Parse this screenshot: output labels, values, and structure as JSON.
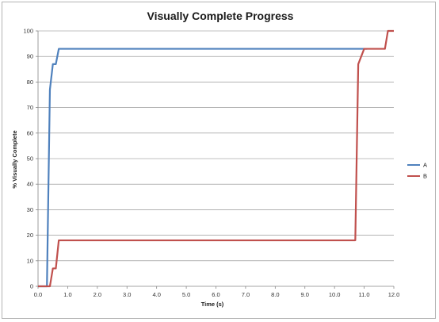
{
  "chart_data": {
    "type": "line",
    "title": "Visually Complete Progress",
    "xlabel": "Time (s)",
    "ylabel": "% Visually Complete",
    "xlim": [
      0,
      12
    ],
    "ylim": [
      0,
      100
    ],
    "x_ticks": [
      0,
      1,
      2,
      3,
      4,
      5,
      6,
      7,
      8,
      9,
      10,
      11,
      12
    ],
    "x_tick_labels": [
      "0.0",
      "1.0",
      "2.0",
      "3.0",
      "4.0",
      "5.0",
      "6.0",
      "7.0",
      "8.0",
      "9.0",
      "10.0",
      "11.0",
      "12.0"
    ],
    "y_ticks": [
      0,
      10,
      20,
      30,
      40,
      50,
      60,
      70,
      80,
      90,
      100
    ],
    "y_tick_labels": [
      "0",
      "10",
      "20",
      "30",
      "40",
      "50",
      "60",
      "70",
      "80",
      "90",
      "100"
    ],
    "grid": true,
    "legend_position": "right",
    "series": [
      {
        "name": "A",
        "color": "#4f81bd",
        "points": [
          [
            0,
            0
          ],
          [
            0.3,
            0
          ],
          [
            0.4,
            77
          ],
          [
            0.5,
            87
          ],
          [
            0.6,
            87
          ],
          [
            0.7,
            93
          ],
          [
            11.0,
            93
          ],
          [
            11.1,
            93
          ]
        ]
      },
      {
        "name": "B",
        "color": "#c0504d",
        "points": [
          [
            0,
            0
          ],
          [
            0.3,
            0
          ],
          [
            0.4,
            0
          ],
          [
            0.5,
            7
          ],
          [
            0.6,
            7
          ],
          [
            0.7,
            18
          ],
          [
            10.7,
            18
          ],
          [
            10.8,
            87
          ],
          [
            10.9,
            90
          ],
          [
            11.0,
            93
          ],
          [
            11.7,
            93
          ],
          [
            11.8,
            100
          ],
          [
            12.0,
            100
          ]
        ]
      }
    ]
  }
}
